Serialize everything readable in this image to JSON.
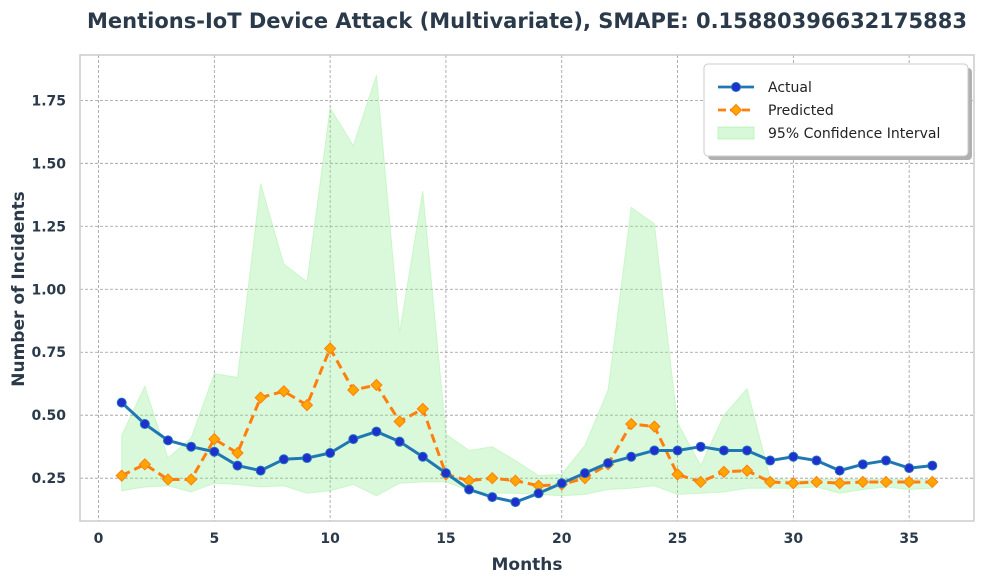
{
  "chart_data": {
    "type": "line",
    "title": "Mentions-IoT Device Attack (Multivariate), SMAPE: 0.15880396632175883",
    "xlabel": "Months",
    "ylabel": "Number of Incidents",
    "xlim": [
      -0.8,
      37.8
    ],
    "ylim": [
      0.08,
      1.93
    ],
    "xticks": [
      0,
      5,
      10,
      15,
      20,
      25,
      30,
      35
    ],
    "yticks": [
      0.25,
      0.5,
      0.75,
      1.0,
      1.25,
      1.5,
      1.75
    ],
    "ytick_labels": [
      "0.25",
      "0.50",
      "0.75",
      "1.00",
      "1.25",
      "1.50",
      "1.75"
    ],
    "grid": true,
    "legend_position": "top-right",
    "x": [
      1,
      2,
      3,
      4,
      5,
      6,
      7,
      8,
      9,
      10,
      11,
      12,
      13,
      14,
      15,
      16,
      17,
      18,
      19,
      20,
      21,
      22,
      23,
      24,
      25,
      26,
      27,
      28,
      29,
      30,
      31,
      32,
      33,
      34,
      35,
      36
    ],
    "series": [
      {
        "name": "Actual",
        "color": "#1f77b4",
        "marker_color": "#1f2fd0",
        "style": "solid",
        "marker": "circle",
        "values": [
          0.55,
          0.465,
          0.4,
          0.375,
          0.355,
          0.3,
          0.28,
          0.325,
          0.33,
          0.35,
          0.405,
          0.435,
          0.395,
          0.335,
          0.27,
          0.205,
          0.175,
          0.155,
          0.19,
          0.23,
          0.27,
          0.31,
          0.335,
          0.36,
          0.36,
          0.375,
          0.36,
          0.36,
          0.32,
          0.335,
          0.32,
          0.28,
          0.305,
          0.32,
          0.29,
          0.3
        ]
      },
      {
        "name": "Predicted",
        "color": "#ff7f0e",
        "marker_color": "#ffa500",
        "style": "dashed",
        "marker": "diamond",
        "values": [
          0.26,
          0.305,
          0.245,
          0.245,
          0.405,
          0.35,
          0.57,
          0.595,
          0.54,
          0.765,
          0.6,
          0.62,
          0.475,
          0.525,
          0.265,
          0.24,
          0.25,
          0.24,
          0.22,
          0.225,
          0.25,
          0.305,
          0.465,
          0.455,
          0.265,
          0.235,
          0.275,
          0.28,
          0.235,
          0.23,
          0.235,
          0.23,
          0.235,
          0.235,
          0.235,
          0.235
        ]
      }
    ],
    "confidence_interval": {
      "name": "95% Confidence Interval",
      "color": "#90ee90",
      "lower": [
        0.2,
        0.215,
        0.22,
        0.195,
        0.23,
        0.225,
        0.215,
        0.22,
        0.19,
        0.2,
        0.225,
        0.18,
        0.23,
        0.235,
        0.235,
        0.2,
        0.19,
        0.19,
        0.185,
        0.18,
        0.185,
        0.205,
        0.21,
        0.22,
        0.185,
        0.19,
        0.195,
        0.21,
        0.21,
        0.21,
        0.215,
        0.19,
        0.205,
        0.215,
        0.205,
        0.21
      ],
      "upper": [
        0.42,
        0.615,
        0.33,
        0.41,
        0.665,
        0.65,
        1.42,
        1.1,
        1.03,
        1.72,
        1.57,
        1.85,
        0.83,
        1.39,
        0.425,
        0.36,
        0.375,
        0.32,
        0.26,
        0.265,
        0.38,
        0.6,
        1.325,
        1.26,
        0.47,
        0.3,
        0.5,
        0.605,
        0.25,
        0.24,
        0.245,
        0.245,
        0.245,
        0.245,
        0.245,
        0.245
      ]
    }
  }
}
